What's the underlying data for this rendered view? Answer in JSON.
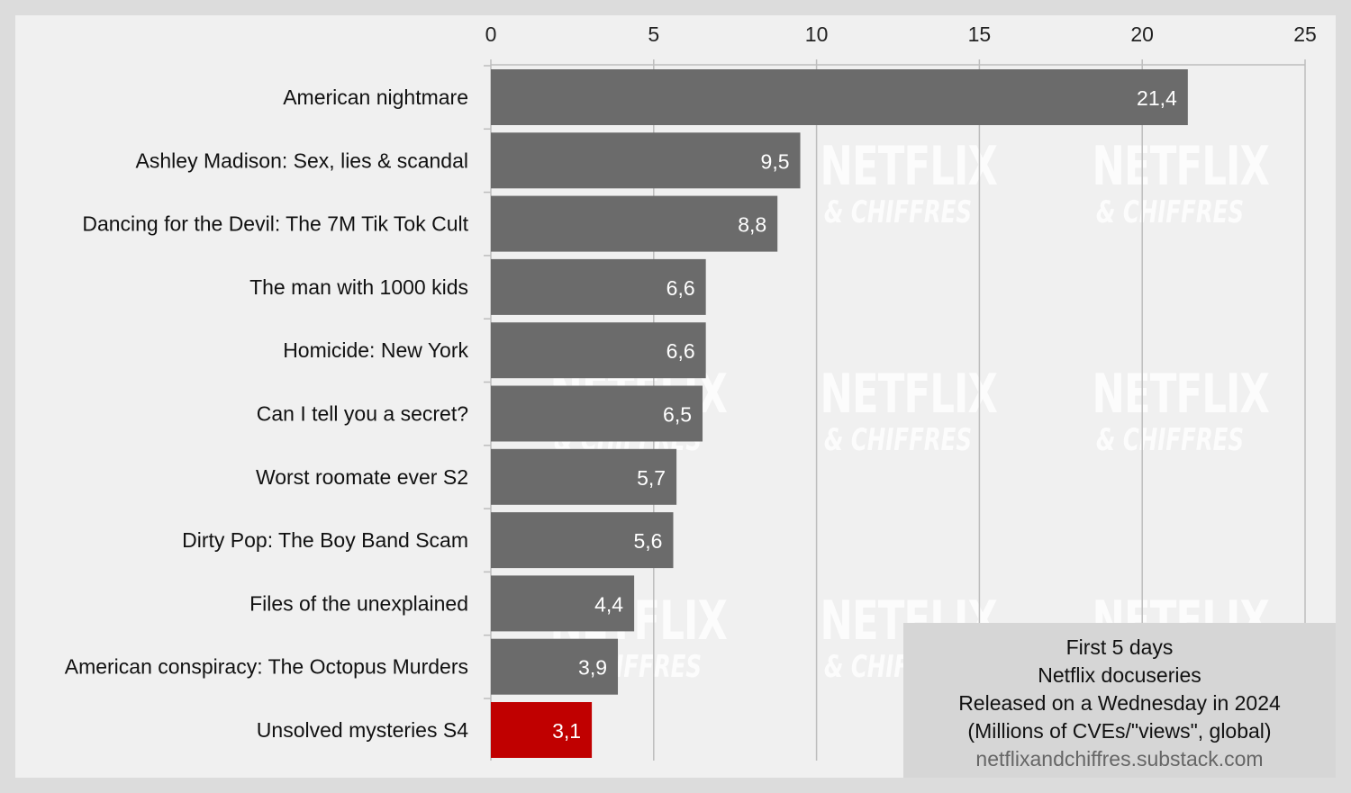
{
  "chart_data": {
    "type": "bar",
    "orientation": "horizontal",
    "categories": [
      "American nightmare",
      "Ashley Madison: Sex, lies & scandal",
      "Dancing for the Devil: The 7M Tik Tok Cult",
      "The man with 1000 kids",
      "Homicide: New York",
      "Can I tell you a secret?",
      "Worst roomate ever S2",
      "Dirty Pop: The Boy Band Scam",
      "Files of the unexplained",
      "American conspiracy: The Octopus Murders",
      "Unsolved mysteries S4"
    ],
    "values": [
      21.4,
      9.5,
      8.8,
      6.6,
      6.6,
      6.5,
      5.7,
      5.6,
      4.4,
      3.9,
      3.1
    ],
    "value_labels": [
      "21,4",
      "9,5",
      "8,8",
      "6,6",
      "6,6",
      "6,5",
      "5,7",
      "5,6",
      "4,4",
      "3,9",
      "3,1"
    ],
    "highlight_index": 10,
    "xlim": [
      0,
      25
    ],
    "xticks": [
      0,
      5,
      10,
      15,
      20,
      25
    ],
    "x_axis_position": "top",
    "grid": true,
    "bar_color": "#6b6b6b",
    "highlight_color": "#c00000",
    "title": "",
    "xlabel": "",
    "ylabel": ""
  },
  "legend_box": {
    "line1": "First 5 days",
    "line2": "Netflix docuseries",
    "line3": "Released on a Wednesday in 2024",
    "line4": "(Millions of CVEs/\"views\", global)",
    "source": "netflixandchiffres.substack.com"
  },
  "watermark": {
    "brand": "NETFLIX",
    "sub": "& CHIFFRES"
  }
}
